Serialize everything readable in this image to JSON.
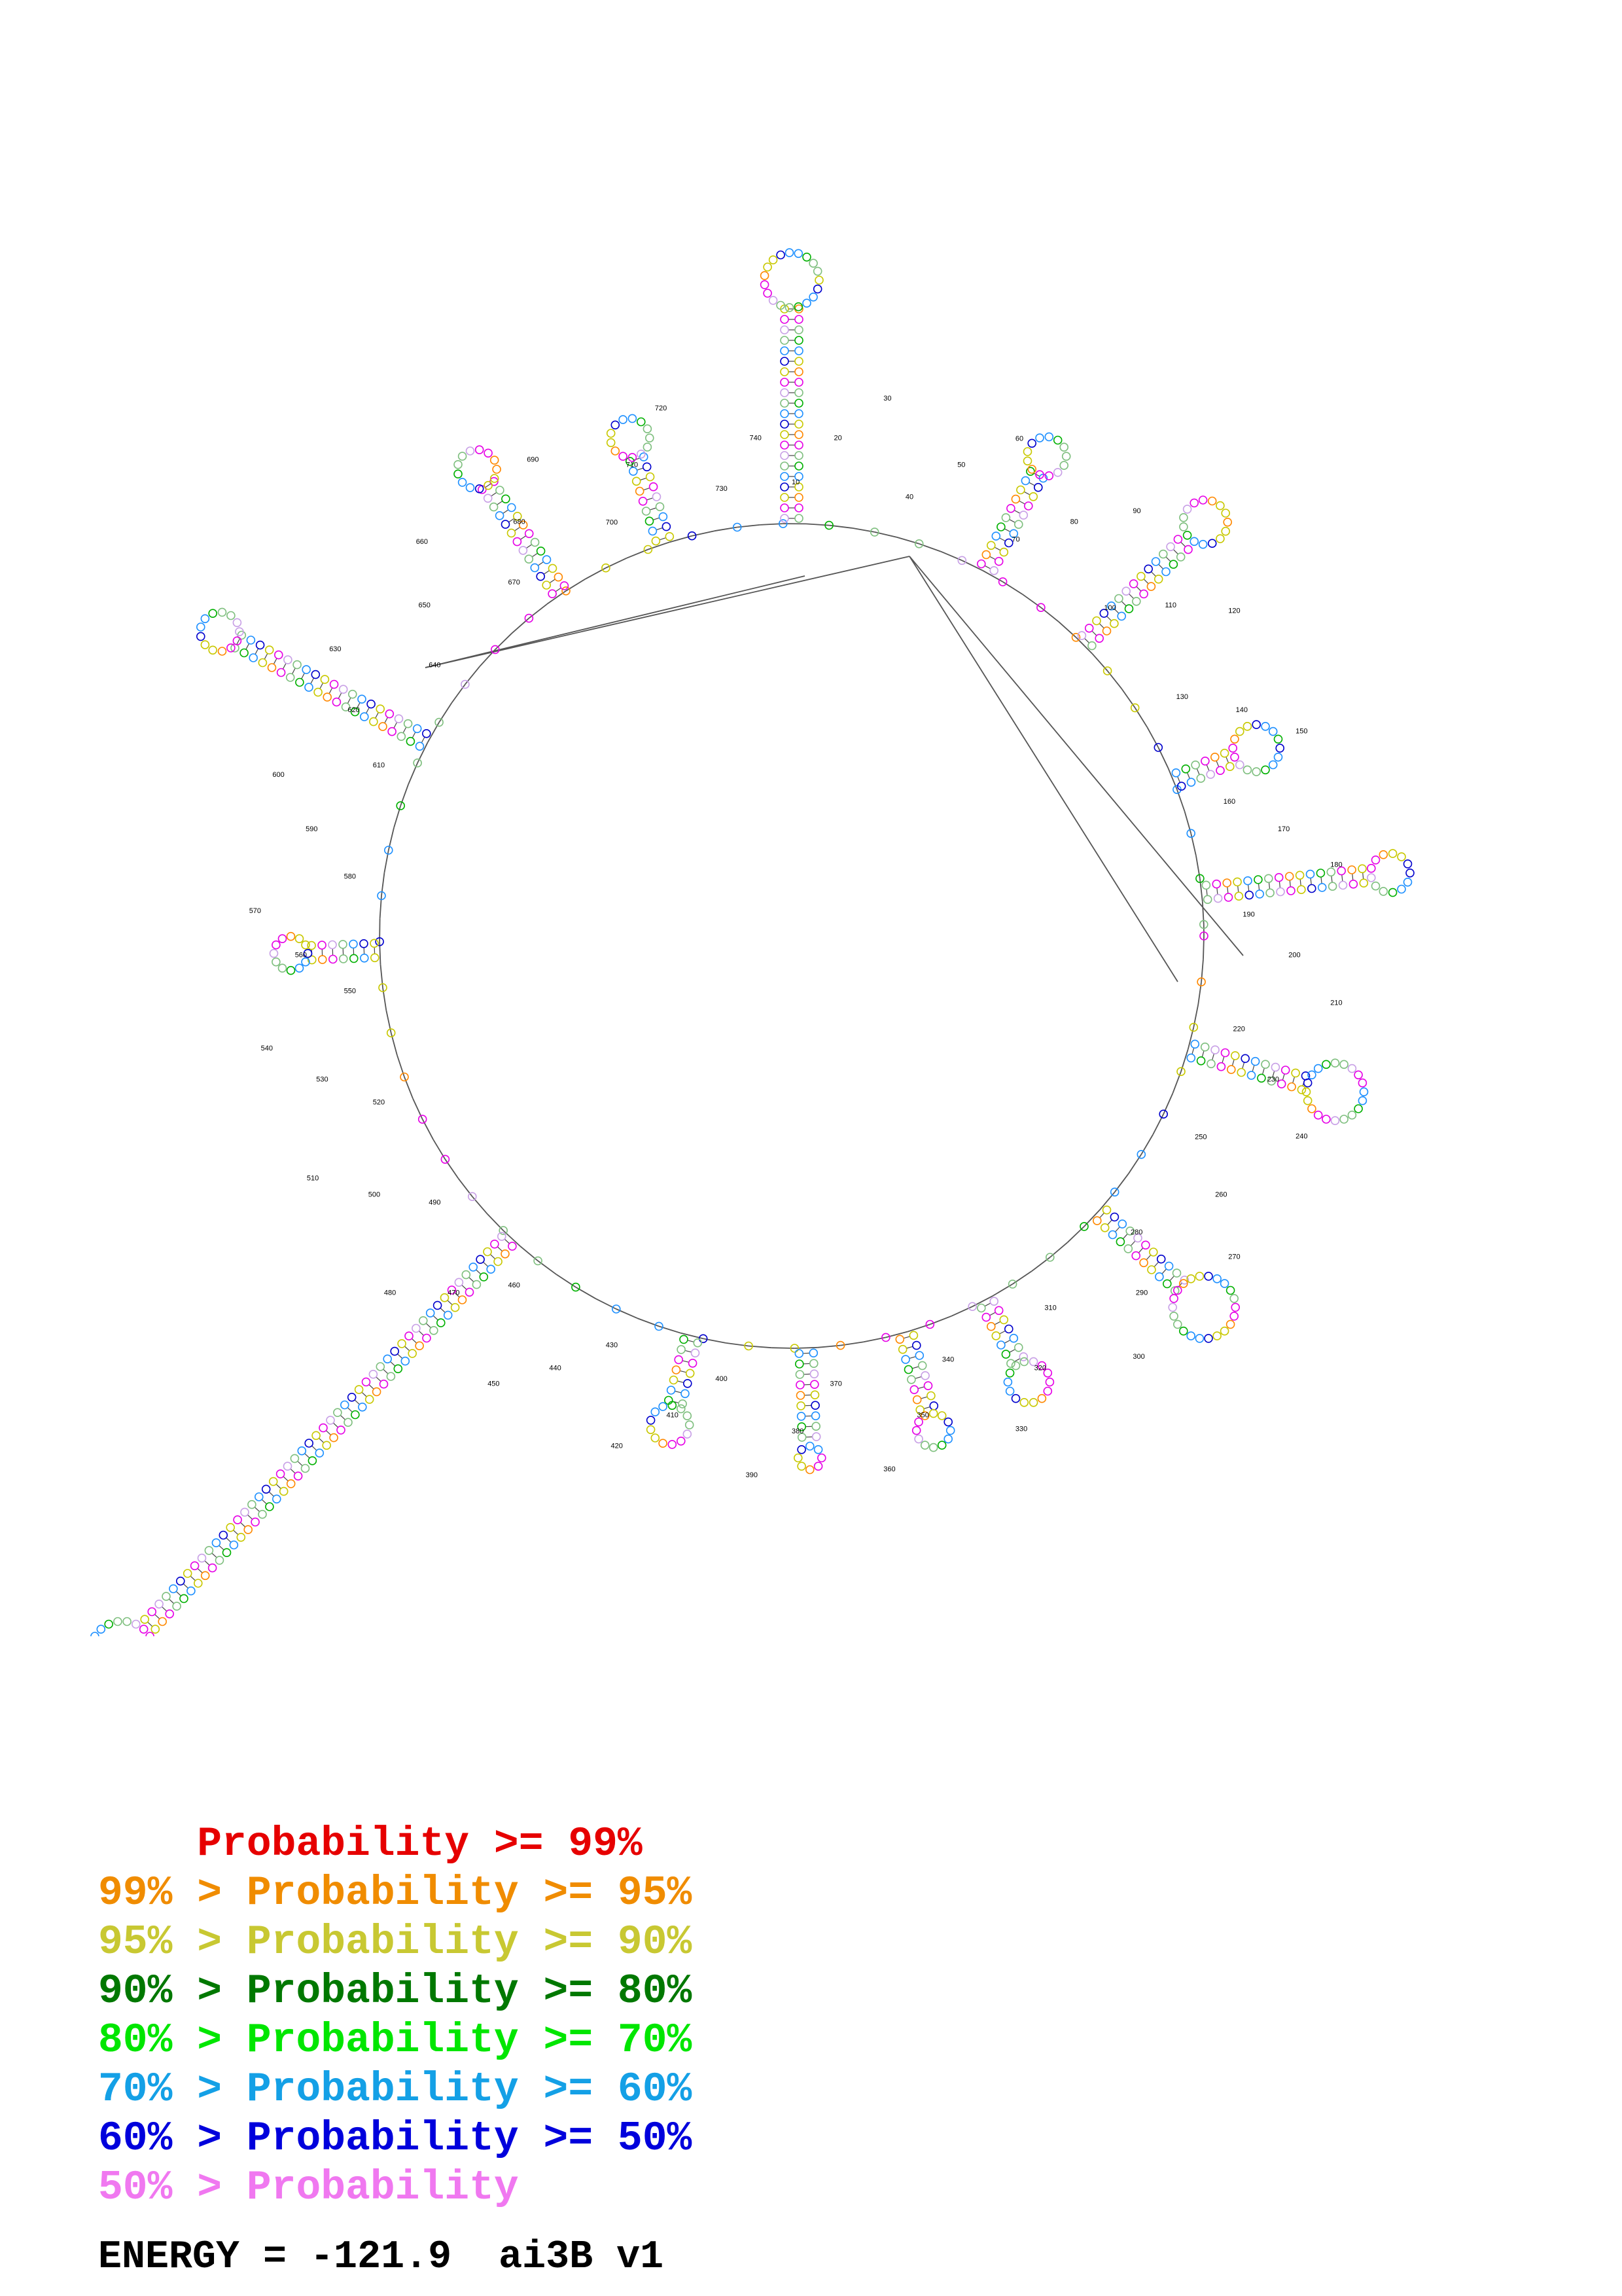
{
  "diagram": {
    "kind": "RNA secondary structure (probability-annotated)",
    "nucleotide_colors": [
      "#e600e6",
      "#c8a0e6",
      "#7fbf7f",
      "#00b000",
      "#1e90ff",
      "#0000cc",
      "#c8c800",
      "#ff8800"
    ],
    "position_labels": [
      {
        "text": "10"
      },
      {
        "text": "20"
      },
      {
        "text": "30"
      },
      {
        "text": "40"
      },
      {
        "text": "50"
      },
      {
        "text": "60"
      },
      {
        "text": "70"
      },
      {
        "text": "80"
      },
      {
        "text": "90"
      },
      {
        "text": "100"
      },
      {
        "text": "110"
      },
      {
        "text": "120"
      },
      {
        "text": "130"
      },
      {
        "text": "140"
      },
      {
        "text": "150"
      },
      {
        "text": "160"
      },
      {
        "text": "170"
      },
      {
        "text": "180"
      },
      {
        "text": "190"
      },
      {
        "text": "200"
      },
      {
        "text": "210"
      },
      {
        "text": "220"
      },
      {
        "text": "230"
      },
      {
        "text": "240"
      },
      {
        "text": "250"
      },
      {
        "text": "260"
      },
      {
        "text": "270"
      },
      {
        "text": "280"
      },
      {
        "text": "290"
      },
      {
        "text": "300"
      },
      {
        "text": "310"
      },
      {
        "text": "320"
      },
      {
        "text": "330"
      },
      {
        "text": "340"
      },
      {
        "text": "350"
      },
      {
        "text": "360"
      },
      {
        "text": "370"
      },
      {
        "text": "380"
      },
      {
        "text": "390"
      },
      {
        "text": "400"
      },
      {
        "text": "410"
      },
      {
        "text": "420"
      },
      {
        "text": "430"
      },
      {
        "text": "440"
      },
      {
        "text": "450"
      },
      {
        "text": "460"
      },
      {
        "text": "470"
      },
      {
        "text": "480"
      },
      {
        "text": "490"
      },
      {
        "text": "500"
      },
      {
        "text": "510"
      },
      {
        "text": "520"
      },
      {
        "text": "530"
      },
      {
        "text": "540"
      },
      {
        "text": "550"
      },
      {
        "text": "560"
      },
      {
        "text": "570"
      },
      {
        "text": "580"
      },
      {
        "text": "590"
      },
      {
        "text": "600"
      },
      {
        "text": "610"
      },
      {
        "text": "620"
      },
      {
        "text": "630"
      },
      {
        "text": "640"
      },
      {
        "text": "650"
      },
      {
        "text": "660"
      },
      {
        "text": "670"
      },
      {
        "text": "680"
      },
      {
        "text": "690"
      },
      {
        "text": "700"
      },
      {
        "text": "710"
      },
      {
        "text": "720"
      },
      {
        "text": "730"
      },
      {
        "text": "740"
      }
    ]
  },
  "legend": {
    "items": [
      {
        "prefix": "    ",
        "text": "    Probability >= 99%",
        "color": "#e60000"
      },
      {
        "prefix": "",
        "text": "99% > Probability >= 95%",
        "color": "#f08c00"
      },
      {
        "prefix": "",
        "text": "95% > Probability >= 90%",
        "color": "#c8c832"
      },
      {
        "prefix": "",
        "text": "90% > Probability >= 80%",
        "color": "#007800"
      },
      {
        "prefix": "",
        "text": "80% > Probability >= 70%",
        "color": "#00e600"
      },
      {
        "prefix": "",
        "text": "70% > Probability >= 60%",
        "color": "#14a0e6"
      },
      {
        "prefix": "",
        "text": "60% > Probability >= 50%",
        "color": "#0000dc"
      },
      {
        "prefix": "",
        "text": "50% > Probability",
        "color": "#f078f0"
      }
    ]
  },
  "energy": {
    "label": "ENERGY = -121.9",
    "sequence_name": "ai3B v1"
  }
}
